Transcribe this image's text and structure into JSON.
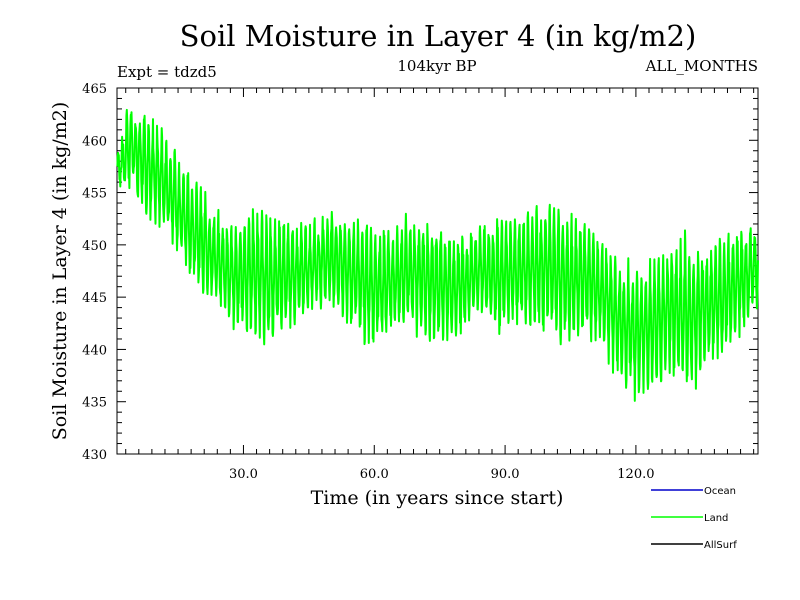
{
  "chart_data": {
    "type": "line",
    "title": "Soil Moisture in Layer 4 (in kg/m2)",
    "experiment_label": "Expt = tdzd5",
    "period_label": "104kyr BP",
    "months_label": "ALL_MONTHS",
    "xlabel": "Time (in years since start)",
    "ylabel": "Soil Moisture in Layer 4 (in kg/m2)",
    "xlim": [
      1,
      148
    ],
    "ylim": [
      430,
      465
    ],
    "x_ticks": [
      {
        "value": 30,
        "label": "30.0"
      },
      {
        "value": 60,
        "label": "60.0"
      },
      {
        "value": 90,
        "label": "90.0"
      },
      {
        "value": 120,
        "label": "120.0"
      }
    ],
    "y_ticks": [
      {
        "value": 430,
        "label": "430"
      },
      {
        "value": 435,
        "label": "435"
      },
      {
        "value": 440,
        "label": "440"
      },
      {
        "value": 445,
        "label": "445"
      },
      {
        "value": 450,
        "label": "450"
      },
      {
        "value": 455,
        "label": "455"
      },
      {
        "value": 460,
        "label": "460"
      },
      {
        "value": 465,
        "label": "465"
      }
    ],
    "legend": [
      {
        "name": "Ocean",
        "color": "#0000cc"
      },
      {
        "name": "Land",
        "color": "#00ff00"
      },
      {
        "name": "AllSurf",
        "color": "#000000"
      }
    ],
    "series": [
      {
        "name": "Land",
        "color": "#00ff00",
        "note": "monthly series with strong seasonal oscillation; envelope given as annual minima/maxima",
        "x": [
          1,
          4,
          8,
          12,
          16,
          20,
          24,
          28,
          32,
          36,
          40,
          44,
          48,
          52,
          56,
          60,
          64,
          68,
          72,
          76,
          80,
          84,
          88,
          92,
          96,
          100,
          104,
          108,
          112,
          116,
          120,
          124,
          128,
          132,
          136,
          140,
          144,
          148
        ],
        "upper": [
          459,
          464,
          463,
          461,
          458,
          456,
          453,
          452,
          454,
          453,
          453,
          452,
          453,
          454,
          453,
          452,
          452,
          453,
          453,
          452,
          451,
          452,
          453,
          453,
          454,
          455,
          453,
          453,
          451,
          449,
          448,
          449,
          451,
          451,
          450,
          451,
          452,
          452
        ],
        "lower": [
          455,
          455,
          452,
          451,
          448,
          445,
          444,
          442,
          441,
          440,
          442,
          443,
          444,
          443,
          441,
          440,
          441,
          442,
          441,
          440,
          441,
          443,
          441,
          442,
          441,
          441,
          440,
          441,
          440,
          437,
          435,
          436,
          437,
          435,
          438,
          439,
          441,
          444
        ]
      }
    ]
  }
}
